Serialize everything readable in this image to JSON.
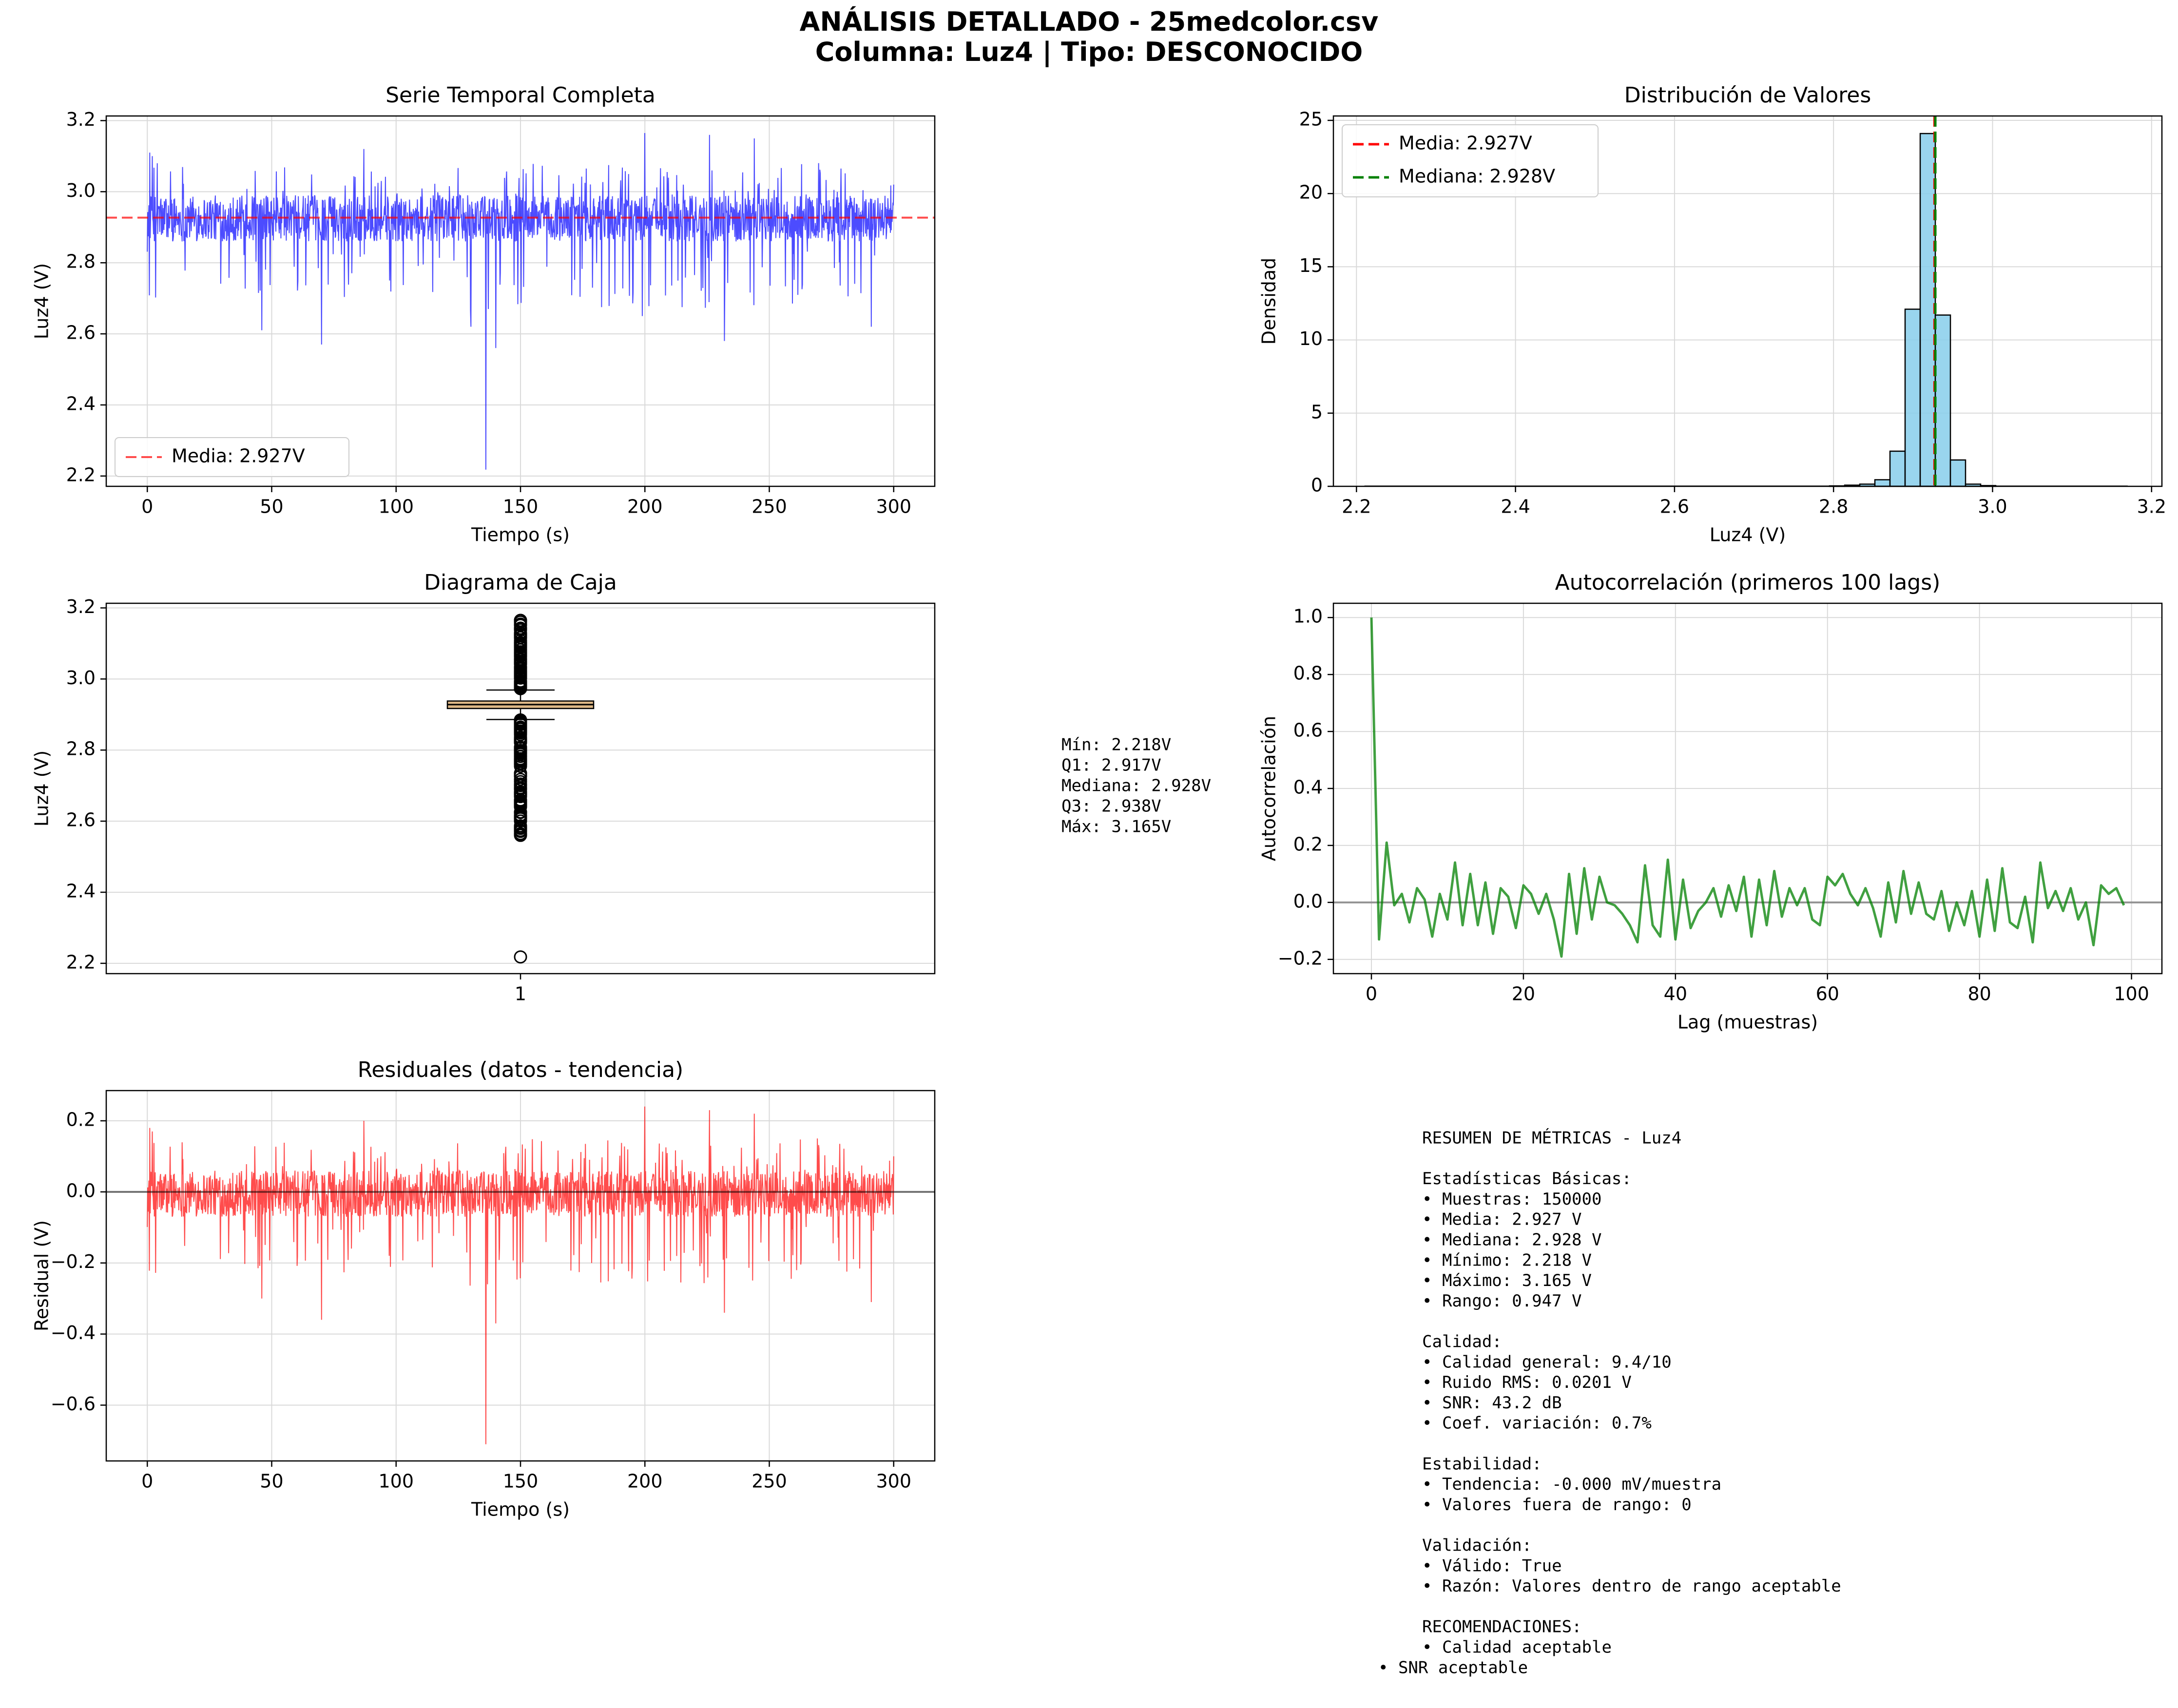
{
  "figure": {
    "title_line1": "ANÁLISIS DETALLADO - 25medcolor.csv",
    "title_line2": "Columna: Luz4 | Tipo: DESCONOCIDO"
  },
  "colors": {
    "series_blue": "#0000ff",
    "mean_red": "#ff0000",
    "median_green": "#008000",
    "hist_fill": "#87ceeb",
    "box_fill": "#deb887",
    "autocorr_green": "#008000",
    "residual_red": "#ff0000",
    "grid": "#d9d9d9",
    "zero_line": "#808080"
  },
  "chart_data": [
    {
      "id": "time_series",
      "type": "line",
      "title": "Serie Temporal Completa",
      "xlabel": "Tiempo (s)",
      "ylabel": "Luz4 (V)",
      "xlim": [
        -16.5,
        316.5
      ],
      "ylim": [
        2.171,
        3.213
      ],
      "xticks": [
        0,
        50,
        100,
        150,
        200,
        250,
        300
      ],
      "yticks": [
        2.2,
        2.4,
        2.6,
        2.8,
        3.0,
        3.2
      ],
      "ytick_labels": [
        "2.2",
        "2.4",
        "2.6",
        "2.8",
        "3.0",
        "3.2"
      ],
      "mean_line": {
        "value": 2.927,
        "label": "Media: 2.927V"
      },
      "legend": "lower-left",
      "grid": true,
      "series": [
        {
          "name": "",
          "x_range": [
            0,
            300
          ],
          "samples": 150000,
          "band": [
            2.86,
            2.99
          ],
          "extremes": [
            {
              "x": 1,
              "y": 3.11
            },
            {
              "x": 2,
              "y": 3.1
            },
            {
              "x": 4,
              "y": 3.08
            },
            {
              "x": 46,
              "y": 2.61
            },
            {
              "x": 70,
              "y": 2.57
            },
            {
              "x": 87,
              "y": 3.12
            },
            {
              "x": 130,
              "y": 2.62
            },
            {
              "x": 136,
              "y": 2.218
            },
            {
              "x": 140,
              "y": 2.56
            },
            {
              "x": 199,
              "y": 2.65
            },
            {
              "x": 200,
              "y": 3.165
            },
            {
              "x": 226,
              "y": 3.16
            },
            {
              "x": 232,
              "y": 2.58
            },
            {
              "x": 244,
              "y": 3.15
            },
            {
              "x": 291,
              "y": 2.62
            },
            {
              "x": 300,
              "y": 3.02
            }
          ]
        }
      ]
    },
    {
      "id": "histogram",
      "type": "bar",
      "title": "Distribución de Valores",
      "xlabel": "Luz4 (V)",
      "ylabel": "Densidad",
      "xlim": [
        2.171,
        3.213
      ],
      "ylim": [
        0,
        25.3
      ],
      "xticks": [
        2.2,
        2.4,
        2.6,
        2.8,
        3.0,
        3.2
      ],
      "xtick_labels": [
        "2.2",
        "2.4",
        "2.6",
        "2.8",
        "3.0",
        "3.2"
      ],
      "yticks": [
        0,
        5,
        10,
        15,
        20,
        25
      ],
      "legend": "top-left",
      "grid": true,
      "bins": [
        {
          "x0": 2.795,
          "x1": 2.814,
          "value": 0.03
        },
        {
          "x0": 2.814,
          "x1": 2.833,
          "value": 0.08
        },
        {
          "x0": 2.833,
          "x1": 2.852,
          "value": 0.15
        },
        {
          "x0": 2.852,
          "x1": 2.871,
          "value": 0.45
        },
        {
          "x0": 2.871,
          "x1": 2.89,
          "value": 2.4
        },
        {
          "x0": 2.89,
          "x1": 2.909,
          "value": 12.1
        },
        {
          "x0": 2.909,
          "x1": 2.928,
          "value": 24.1
        },
        {
          "x0": 2.928,
          "x1": 2.947,
          "value": 11.7
        },
        {
          "x0": 2.947,
          "x1": 2.966,
          "value": 1.8
        },
        {
          "x0": 2.966,
          "x1": 2.985,
          "value": 0.15
        },
        {
          "x0": 2.985,
          "x1": 3.004,
          "value": 0.05
        }
      ],
      "mean_line": {
        "value": 2.927,
        "label": "Media: 2.927V"
      },
      "median_line": {
        "value": 2.928,
        "label": "Mediana: 2.928V"
      }
    },
    {
      "id": "boxplot",
      "type": "box",
      "title": "Diagrama de Caja",
      "ylabel": "Luz4 (V)",
      "xtick_labels": [
        "1"
      ],
      "ylim": [
        2.171,
        3.213
      ],
      "yticks": [
        2.2,
        2.4,
        2.6,
        2.8,
        3.0,
        3.2
      ],
      "ytick_labels": [
        "2.2",
        "2.4",
        "2.6",
        "2.8",
        "3.0",
        "3.2"
      ],
      "grid": true,
      "min": 2.218,
      "q1": 2.917,
      "median": 2.928,
      "q3": 2.938,
      "max": 3.165,
      "whisker_low": 2.886,
      "whisker_high": 2.969,
      "outliers_upper_range": [
        2.97,
        3.165
      ],
      "outliers_lower_range": [
        2.56,
        2.885
      ],
      "outlier_isolated": 2.218
    },
    {
      "id": "autocorrelation",
      "type": "line",
      "title": "Autocorrelación (primeros 100 lags)",
      "xlabel": "Lag (muestras)",
      "ylabel": "Autocorrelación",
      "xlim": [
        -5,
        104
      ],
      "ylim": [
        -0.25,
        1.05
      ],
      "xticks": [
        0,
        20,
        40,
        60,
        80,
        100
      ],
      "yticks": [
        -0.2,
        0.0,
        0.2,
        0.4,
        0.6,
        0.8,
        1.0
      ],
      "ytick_labels": [
        "−0.2",
        "0.0",
        "0.2",
        "0.4",
        "0.6",
        "0.8",
        "1.0"
      ],
      "grid": true,
      "zero_line": 0,
      "series": [
        {
          "name": "",
          "x_start": 0,
          "values": [
            1.0,
            -0.13,
            0.21,
            -0.01,
            0.03,
            -0.07,
            0.05,
            0.01,
            -0.12,
            0.03,
            -0.06,
            0.14,
            -0.08,
            0.1,
            -0.08,
            0.07,
            -0.11,
            0.05,
            0.02,
            -0.09,
            0.06,
            0.03,
            -0.04,
            0.03,
            -0.06,
            -0.19,
            0.1,
            -0.11,
            0.12,
            -0.06,
            0.09,
            0.0,
            -0.01,
            -0.04,
            -0.08,
            -0.14,
            0.13,
            -0.08,
            -0.12,
            0.15,
            -0.13,
            0.08,
            -0.09,
            -0.03,
            0.0,
            0.05,
            -0.05,
            0.06,
            -0.03,
            0.09,
            -0.12,
            0.08,
            -0.08,
            0.11,
            -0.05,
            0.05,
            -0.01,
            0.05,
            -0.06,
            -0.08,
            0.09,
            0.06,
            0.1,
            0.03,
            -0.01,
            0.05,
            -0.02,
            -0.12,
            0.07,
            -0.07,
            0.11,
            -0.04,
            0.07,
            -0.04,
            -0.06,
            0.04,
            -0.1,
            0.0,
            -0.08,
            0.04,
            -0.12,
            0.08,
            -0.1,
            0.12,
            -0.07,
            -0.09,
            0.02,
            -0.14,
            0.14,
            -0.02,
            0.04,
            -0.03,
            0.05,
            -0.06,
            0.0,
            -0.15,
            0.06,
            0.03,
            0.05,
            -0.01
          ]
        }
      ]
    },
    {
      "id": "residuals",
      "type": "line",
      "title": "Residuales (datos - tendencia)",
      "xlabel": "Tiempo (s)",
      "ylabel": "Residual (V)",
      "xlim": [
        -16.5,
        316.5
      ],
      "ylim": [
        -0.757,
        0.285
      ],
      "xticks": [
        0,
        50,
        100,
        150,
        200,
        250,
        300
      ],
      "yticks": [
        -0.6,
        -0.4,
        -0.2,
        0.0,
        0.2
      ],
      "ytick_labels": [
        "−0.6",
        "−0.4",
        "−0.2",
        "0.0",
        "0.2"
      ],
      "grid": true,
      "zero_line": 0,
      "series": [
        {
          "name": "",
          "x_range": [
            0,
            300
          ],
          "samples": 150000,
          "band": [
            -0.07,
            0.06
          ],
          "extremes": [
            {
              "x": 1,
              "y": 0.18
            },
            {
              "x": 2,
              "y": 0.17
            },
            {
              "x": 46,
              "y": -0.3
            },
            {
              "x": 70,
              "y": -0.36
            },
            {
              "x": 87,
              "y": 0.2
            },
            {
              "x": 136,
              "y": -0.71
            },
            {
              "x": 140,
              "y": -0.37
            },
            {
              "x": 200,
              "y": 0.24
            },
            {
              "x": 226,
              "y": 0.23
            },
            {
              "x": 232,
              "y": -0.34
            },
            {
              "x": 244,
              "y": 0.22
            },
            {
              "x": 291,
              "y": -0.31
            },
            {
              "x": 300,
              "y": 0.1
            }
          ]
        }
      ]
    }
  ],
  "box_stats": [
    "Mín: 2.218V",
    "Q1: 2.917V",
    "Mediana: 2.928V",
    "Q3: 2.938V",
    "Máx: 3.165V"
  ],
  "summary": [
    "RESUMEN DE MÉTRICAS - Luz4",
    "",
    "Estadísticas Básicas:",
    "• Muestras: 150000",
    "• Media: 2.927 V",
    "• Mediana: 2.928 V",
    "• Mínimo: 2.218 V",
    "• Máximo: 3.165 V",
    "• Rango: 0.947 V",
    "",
    "Calidad:",
    "• Calidad general: 9.4/10",
    "• Ruido RMS: 0.0201 V",
    "• SNR: 43.2 dB",
    "• Coef. variación: 0.7%",
    "",
    "Estabilidad:",
    "• Tendencia: -0.000 mV/muestra",
    "• Valores fuera de rango: 0",
    "",
    "Validación:",
    "• Válido: True",
    "• Razón: Valores dentro de rango aceptable",
    "",
    "RECOMENDACIONES:",
    "• Calidad aceptable"
  ],
  "summary_last": "• SNR aceptable"
}
